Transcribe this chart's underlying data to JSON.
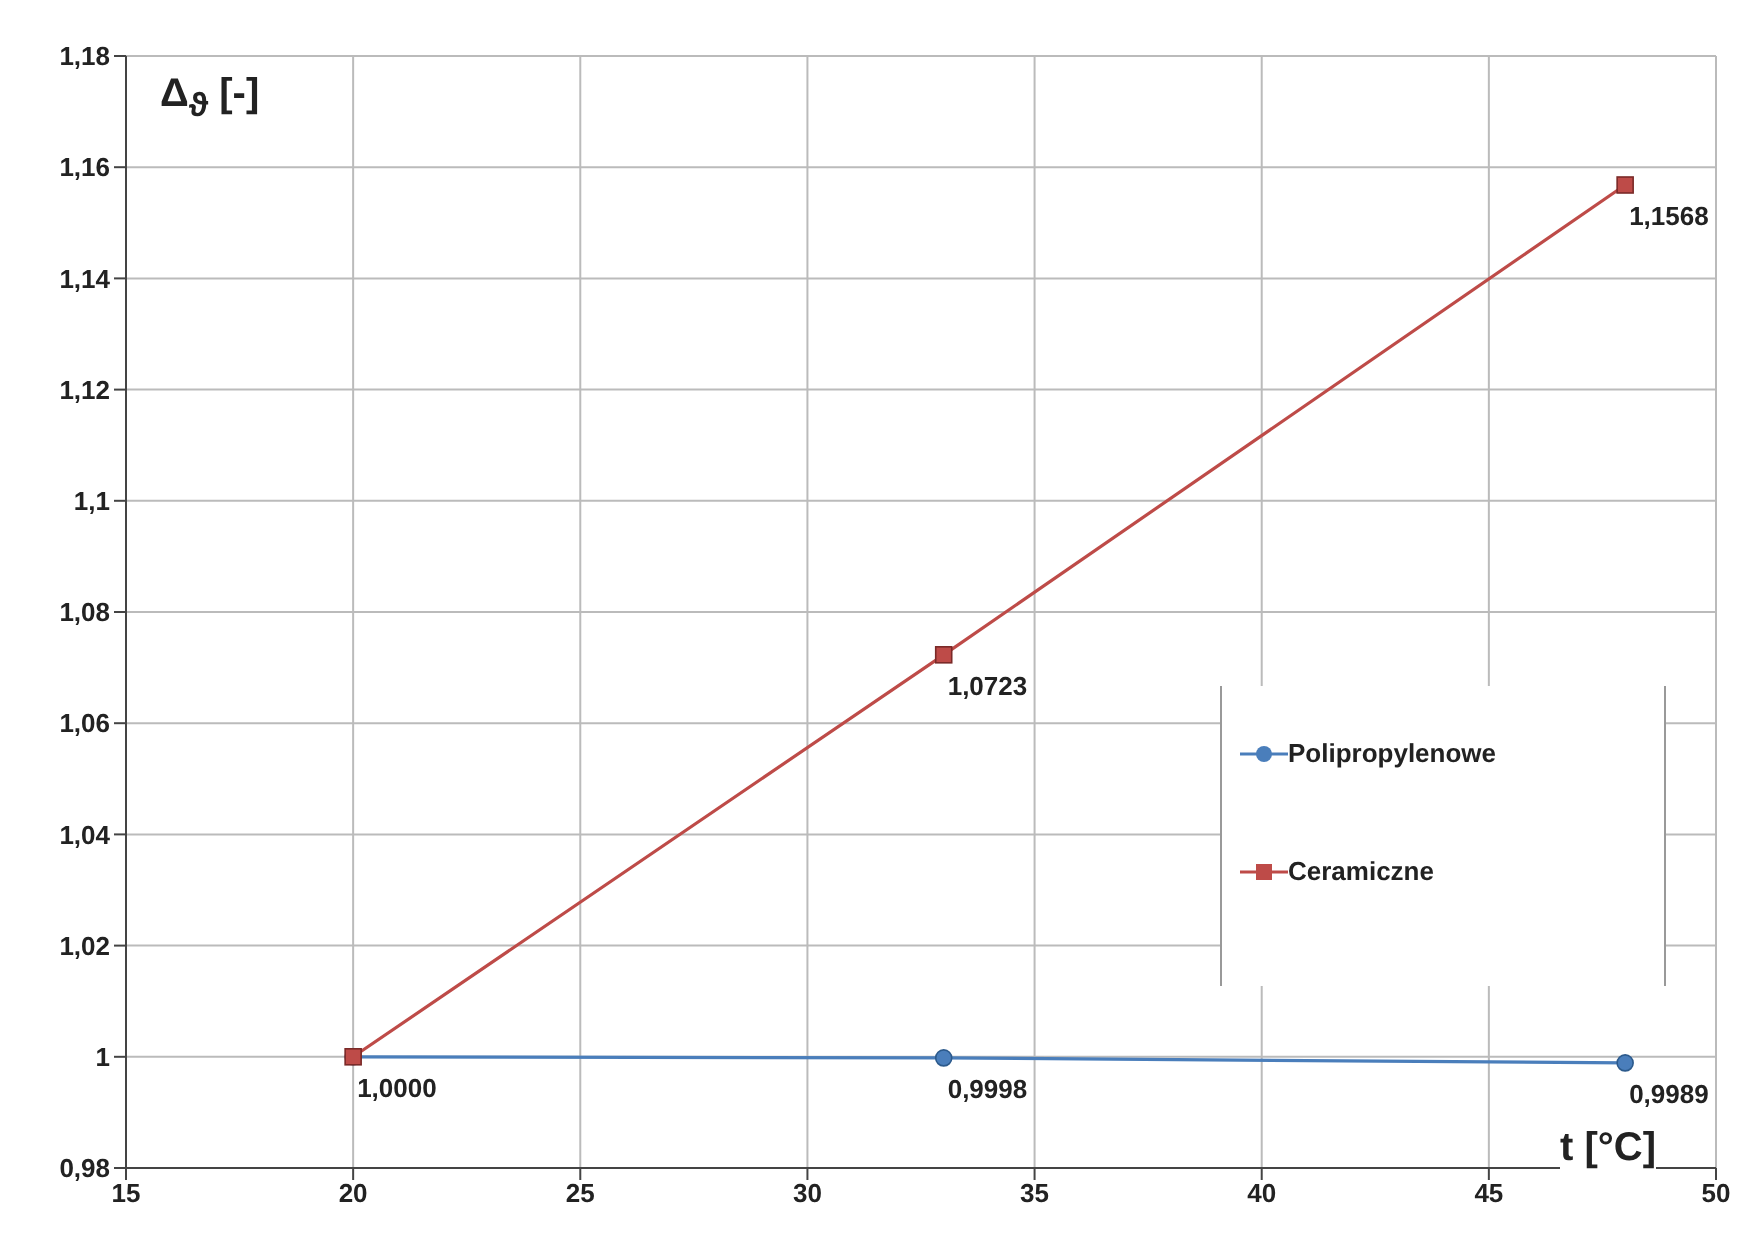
{
  "chart_data": {
    "type": "line",
    "xlabel": "t [°C]",
    "ylabel": "Δ$_{ϑ}$ [-]",
    "x": [
      20,
      33,
      48
    ],
    "series": [
      {
        "name": "Polipropylenowe",
        "color": "#4a7ebb",
        "marker": "circle",
        "values": [
          1.0,
          0.9998,
          0.9989
        ],
        "value_labels": [
          null,
          "0,9998",
          "0,9989"
        ]
      },
      {
        "name": "Ceramiczne",
        "color": "#be4b48",
        "marker": "square",
        "values": [
          1.0,
          1.0723,
          1.1568
        ],
        "value_labels": [
          "1,0000",
          "1,0723",
          "1,1568"
        ]
      }
    ],
    "xlim": [
      15,
      50
    ],
    "xticks": [
      15,
      20,
      25,
      30,
      35,
      40,
      45,
      50
    ],
    "ylim": [
      0.98,
      1.18
    ],
    "yticks": [
      {
        "value": 0.98,
        "label": "0,98"
      },
      {
        "value": 1,
        "label": "1"
      },
      {
        "value": 1.02,
        "label": "1,02"
      },
      {
        "value": 1.04,
        "label": "1,04"
      },
      {
        "value": 1.06,
        "label": "1,06"
      },
      {
        "value": 1.08,
        "label": "1,08"
      },
      {
        "value": 1.1,
        "label": "1,1"
      },
      {
        "value": 1.12,
        "label": "1,12"
      },
      {
        "value": 1.14,
        "label": "1,14"
      },
      {
        "value": 1.16,
        "label": "1,16"
      },
      {
        "value": 1.18,
        "label": "1,18"
      }
    ],
    "grid": true,
    "legend": "right"
  }
}
